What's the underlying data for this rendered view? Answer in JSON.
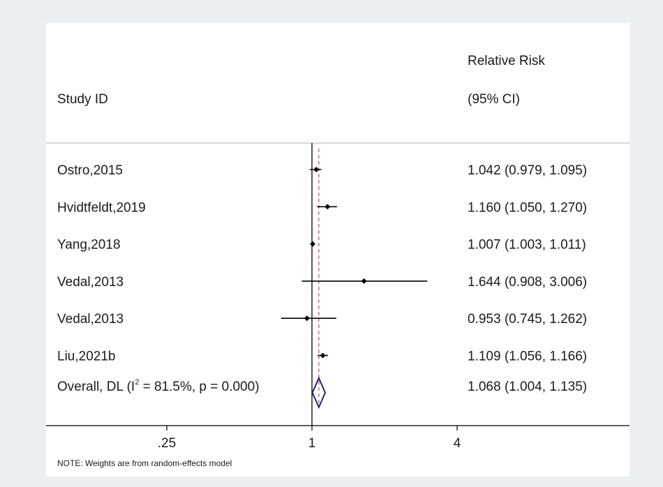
{
  "chart_data": {
    "type": "forest",
    "header": {
      "study_col": "Study ID",
      "effect_col_line1": "Relative Risk",
      "effect_col_line2": "(95% CI)"
    },
    "studies": [
      {
        "label": "Ostro,2015",
        "rr": 1.042,
        "lower": 0.979,
        "upper": 1.095,
        "ci_text": "1.042 (0.979, 1.095)"
      },
      {
        "label": "Hvidtfeldt,2019",
        "rr": 1.16,
        "lower": 1.05,
        "upper": 1.27,
        "ci_text": "1.160 (1.050, 1.270)"
      },
      {
        "label": "Yang,2018",
        "rr": 1.007,
        "lower": 1.003,
        "upper": 1.011,
        "ci_text": "1.007 (1.003, 1.011)"
      },
      {
        "label": "Vedal,2013",
        "rr": 1.644,
        "lower": 0.908,
        "upper": 3.006,
        "ci_text": "1.644 (0.908, 3.006)"
      },
      {
        "label": "Vedal,2013",
        "rr": 0.953,
        "lower": 0.745,
        "upper": 1.262,
        "ci_text": "0.953 (0.745, 1.262)"
      },
      {
        "label": "Liu,2021b",
        "rr": 1.109,
        "lower": 1.056,
        "upper": 1.166,
        "ci_text": "1.109 (1.056, 1.166)"
      }
    ],
    "overall": {
      "label_prefix": "Overall, DL (I",
      "label_sup": "2",
      "label_suffix": " = 81.5%, p = 0.000)",
      "rr": 1.068,
      "lower": 1.004,
      "upper": 1.135,
      "ci_text": "1.068 (1.004, 1.135)"
    },
    "x_axis": {
      "scale": "log",
      "ticks": [
        {
          "value": 0.25,
          "label": ".25"
        },
        {
          "value": 1,
          "label": "1"
        },
        {
          "value": 4,
          "label": "4"
        }
      ],
      "null_line": 1
    },
    "note": "NOTE: Weights are from random-effects model",
    "colors": {
      "background": "#ebeef2",
      "panel": "#ffffff",
      "line": "#000000",
      "diamond": "#1f2a6b",
      "reference": "#b03030",
      "separator": "#bfbfbf"
    }
  }
}
